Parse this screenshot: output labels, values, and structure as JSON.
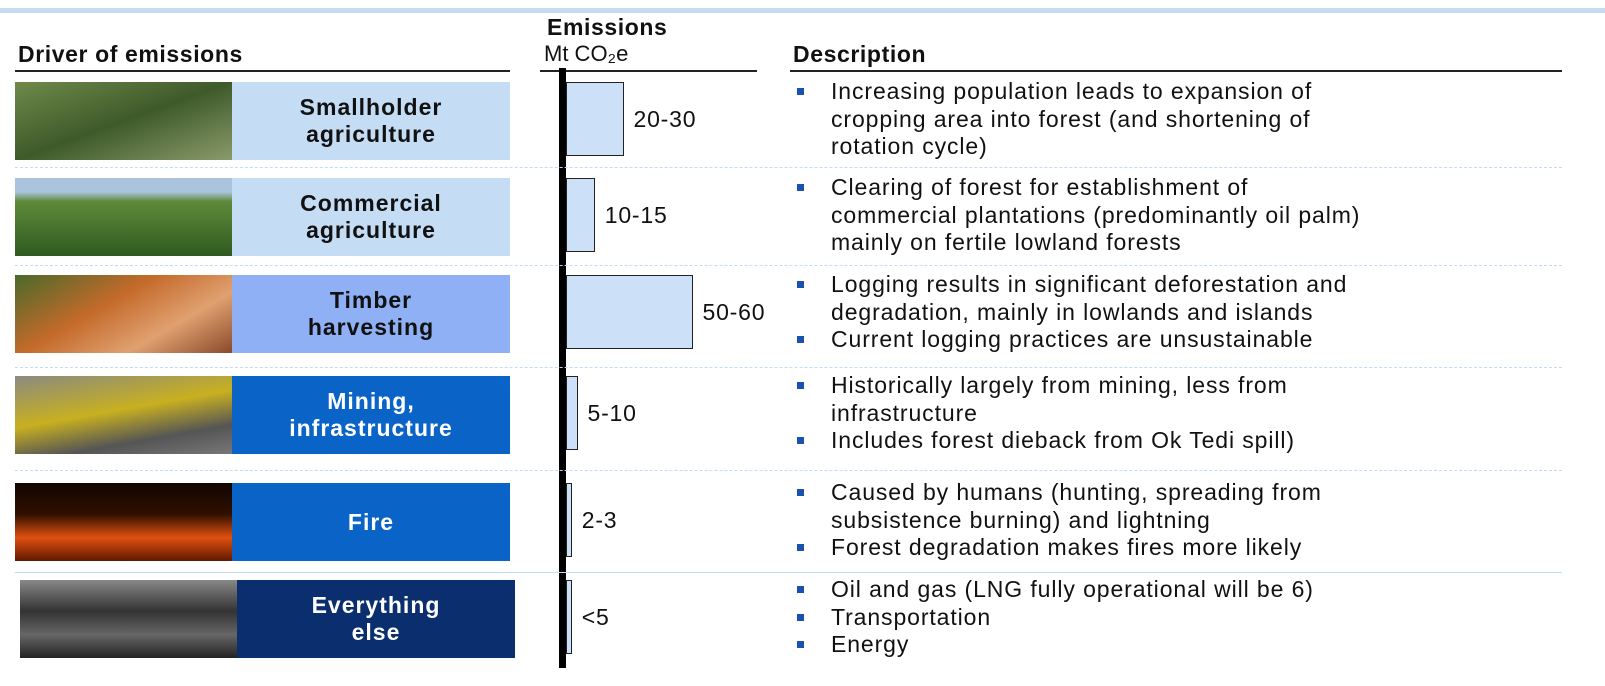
{
  "headers": {
    "driver": "Driver of emissions",
    "emissions_title": "Emissions",
    "emissions_unit": "Mt CO₂e",
    "description": "Description"
  },
  "rows": [
    {
      "driver": [
        "Smallholder",
        "agriculture"
      ],
      "emissions": {
        "value": 25,
        "label": "20-30"
      },
      "description": [
        [
          "Increasing population leads to expansion of",
          "cropping area into forest (and shortening of",
          "rotation cycle)"
        ]
      ]
    },
    {
      "driver": [
        "Commercial",
        "agriculture"
      ],
      "emissions": {
        "value": 12.5,
        "label": "10-15"
      },
      "description": [
        [
          "Clearing of forest for establishment of",
          "commercial plantations (predominantly oil palm)",
          "mainly on fertile lowland forests"
        ]
      ]
    },
    {
      "driver": [
        "Timber",
        "harvesting"
      ],
      "emissions": {
        "value": 55,
        "label": "50-60"
      },
      "description": [
        [
          "Logging results in significant deforestation  and",
          "degradation, mainly in lowlands and islands"
        ],
        [
          "Current logging practices are unsustainable"
        ]
      ]
    },
    {
      "driver": [
        "Mining,",
        "infrastructure"
      ],
      "emissions": {
        "value": 5,
        "label": "5-10"
      },
      "description": [
        [
          "Historically largely from mining, less from",
          "infrastructure"
        ],
        [
          "Includes forest dieback from Ok Tedi spill)"
        ]
      ]
    },
    {
      "driver": [
        "Fire"
      ],
      "emissions": {
        "value": 2.5,
        "label": "2-3"
      },
      "description": [
        [
          "Caused by humans (hunting, spreading from",
          "subsistence burning) and lightning"
        ],
        [
          "Forest degradation makes fires more likely"
        ]
      ]
    },
    {
      "driver": [
        "Everything",
        "else"
      ],
      "emissions": {
        "value": 2.5,
        "label": "<5"
      },
      "description": [
        [
          "Oil and gas (LNG fully operational will be 6)"
        ],
        [
          "Transportation"
        ],
        [
          "Energy"
        ]
      ]
    }
  ]
}
